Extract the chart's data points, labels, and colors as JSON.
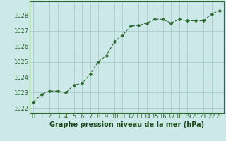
{
  "x": [
    0,
    1,
    2,
    3,
    4,
    5,
    6,
    7,
    8,
    9,
    10,
    11,
    12,
    13,
    14,
    15,
    16,
    17,
    18,
    19,
    20,
    21,
    22,
    23
  ],
  "y": [
    1022.4,
    1022.9,
    1023.1,
    1023.1,
    1023.0,
    1023.5,
    1023.6,
    1024.2,
    1025.0,
    1025.4,
    1026.3,
    1026.7,
    1027.3,
    1027.35,
    1027.5,
    1027.75,
    1027.75,
    1027.5,
    1027.75,
    1027.65,
    1027.65,
    1027.65,
    1028.1,
    1028.3
  ],
  "line_color": "#2d6a2d",
  "marker": "D",
  "marker_size": 2.5,
  "bg_color": "#cce8e8",
  "grid_color": "#aacccc",
  "xlabel": "Graphe pression niveau de la mer (hPa)",
  "xlabel_color": "#1a4a1a",
  "xlabel_fontsize": 7,
  "ylabel_ticks": [
    1022,
    1023,
    1024,
    1025,
    1026,
    1027,
    1028
  ],
  "xlim": [
    -0.5,
    23.5
  ],
  "ylim": [
    1021.7,
    1028.9
  ],
  "tick_fontsize": 6,
  "tick_color": "#2d6a2d",
  "spine_color": "#2d6a2d"
}
